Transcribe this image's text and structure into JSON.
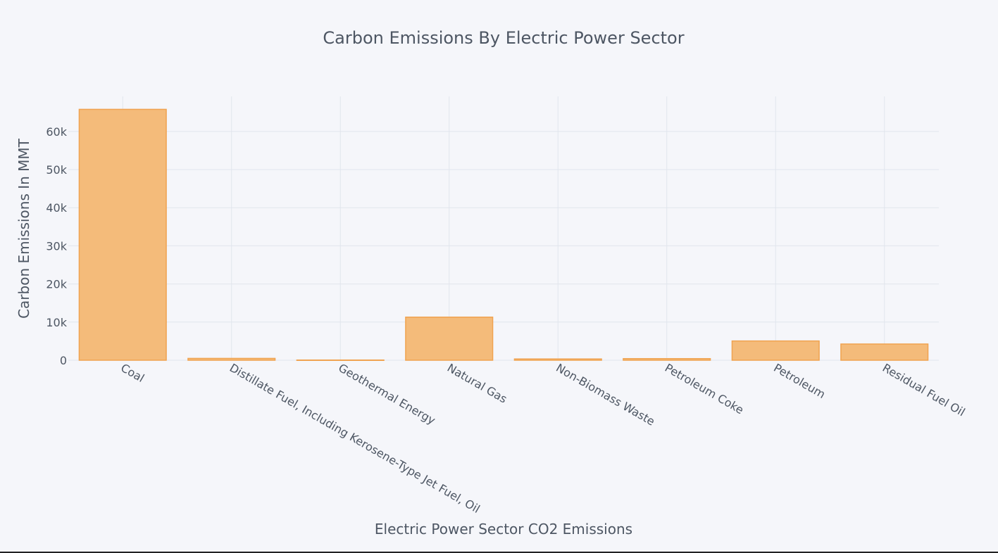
{
  "chart_data": {
    "type": "bar",
    "title": "Carbon Emissions By Electric Power Sector",
    "xlabel": "Electric Power Sector CO2 Emissions",
    "ylabel": "Carbon Emissions In MMT",
    "categories": [
      "Coal",
      "Distillate Fuel, Including Kerosene-Type Jet Fuel, Oil",
      "Geothermal Energy",
      "Natural Gas",
      "Non-Biomass Waste",
      "Petroleum Coke",
      "Petroleum",
      "Residual Fuel Oil"
    ],
    "values": [
      65800,
      480,
      50,
      11300,
      330,
      420,
      5050,
      4250
    ],
    "ylim": [
      0,
      69200
    ],
    "yticks": [
      0,
      10000,
      20000,
      30000,
      40000,
      50000,
      60000
    ],
    "ytick_labels": [
      "0",
      "10k",
      "20k",
      "30k",
      "40k",
      "50k",
      "60k"
    ],
    "grid": true,
    "bar_fill": "#f4bb7a",
    "bar_stroke": "#f0a350"
  }
}
